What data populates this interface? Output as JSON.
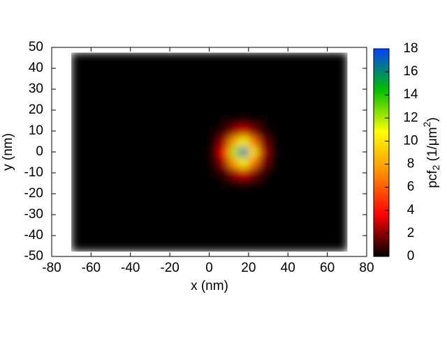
{
  "chart_data": {
    "type": "heatmap",
    "x_label": "x (nm)",
    "y_label": "y (nm)",
    "colorbar_label": [
      "pcf",
      "2",
      " (1/μm",
      "2",
      ")"
    ],
    "x": [
      -67.5,
      -62.5,
      -57.5,
      -52.5,
      -47.5,
      -42.5,
      -37.5,
      -32.5,
      -27.5,
      -22.5,
      -17.5,
      -12.5,
      -7.5,
      -2.5,
      2.5,
      7.5,
      12.5,
      17.5,
      22.5,
      27.5,
      32.5,
      37.5,
      42.5,
      47.5,
      52.5,
      57.5,
      62.5,
      67.5
    ],
    "y": [
      -45,
      -40,
      -35,
      -30,
      -25,
      -20,
      -15,
      -10,
      -5,
      0,
      5,
      10,
      15,
      20,
      25,
      30,
      35,
      40,
      45
    ],
    "z": [
      [
        0,
        0,
        0,
        0,
        0,
        0,
        0,
        0,
        0,
        0,
        0,
        0,
        0,
        0,
        0,
        0,
        0,
        0,
        0,
        0,
        0,
        0,
        0,
        0,
        0,
        0,
        0,
        0
      ],
      [
        0,
        0,
        0,
        0,
        0,
        0,
        0,
        0,
        0,
        0,
        0,
        0,
        0,
        0,
        0,
        0,
        0,
        0,
        0,
        0,
        0,
        0,
        0,
        0,
        0,
        0,
        0,
        0
      ],
      [
        0,
        0,
        0,
        0,
        0,
        0,
        0,
        0,
        0,
        0,
        0,
        0,
        0,
        0,
        0,
        0,
        0,
        0,
        0,
        0,
        0,
        0,
        0,
        0,
        0,
        0,
        0,
        0
      ],
      [
        0,
        0,
        0,
        0,
        0,
        0,
        0,
        0,
        0,
        0,
        0,
        0,
        0,
        0,
        0,
        0,
        0,
        0,
        0,
        0,
        0,
        0,
        0,
        0,
        0,
        0,
        0,
        0
      ],
      [
        0,
        0,
        0,
        0,
        0,
        0,
        0,
        0,
        0,
        0,
        0,
        0,
        0,
        0,
        0,
        0,
        0,
        0,
        0,
        0,
        0,
        0,
        0,
        0,
        0,
        0,
        0,
        0
      ],
      [
        0,
        0,
        0,
        0,
        0,
        0,
        0,
        0,
        0,
        0,
        0,
        0,
        0,
        0,
        0,
        0,
        0,
        0,
        0,
        0,
        0,
        0,
        0,
        0,
        0,
        0,
        0,
        0
      ],
      [
        0,
        0,
        0,
        0,
        0,
        0,
        0,
        0,
        0,
        0,
        0,
        0,
        0,
        0,
        0,
        0.1,
        0.2,
        0.4,
        0.2,
        0.1,
        0,
        0,
        0,
        0,
        0,
        0,
        0,
        0
      ],
      [
        0,
        0,
        0,
        0,
        0,
        0,
        0,
        0,
        0,
        0,
        0,
        0,
        0,
        0,
        0.1,
        0.6,
        2.1,
        3.0,
        1.8,
        0.5,
        0,
        0,
        0,
        0,
        0,
        0,
        0,
        0
      ],
      [
        0,
        0,
        0,
        0,
        0,
        0,
        0,
        0,
        0,
        0,
        0,
        0,
        0,
        0,
        0.3,
        2.3,
        7.8,
        11.0,
        6.6,
        1.7,
        0.2,
        0,
        0,
        0,
        0,
        0,
        0,
        0
      ],
      [
        0,
        0,
        0,
        0,
        0,
        0,
        0,
        0,
        0,
        0,
        0,
        0,
        0,
        0,
        0.5,
        3.6,
        12.0,
        16.9,
        10.1,
        2.5,
        0.3,
        0,
        0,
        0,
        0,
        0,
        0,
        0
      ],
      [
        0,
        0,
        0,
        0,
        0,
        0,
        0,
        0,
        0,
        0,
        0,
        0,
        0,
        0,
        0.3,
        2.3,
        7.8,
        11.0,
        6.6,
        1.7,
        0.2,
        0,
        0,
        0,
        0,
        0,
        0,
        0
      ],
      [
        0,
        0,
        0,
        0,
        0,
        0,
        0,
        0,
        0,
        0,
        0,
        0,
        0,
        0,
        0.1,
        0.6,
        2.1,
        3.0,
        1.8,
        0.5,
        0,
        0,
        0,
        0,
        0,
        0,
        0,
        0
      ],
      [
        0,
        0,
        0,
        0,
        0,
        0,
        0,
        0,
        0,
        0,
        0,
        0,
        0,
        0,
        0,
        0.1,
        0.2,
        0.4,
        0.2,
        0.1,
        0,
        0,
        0,
        0,
        0,
        0,
        0,
        0
      ],
      [
        0,
        0,
        0,
        0,
        0,
        0,
        0,
        0,
        0,
        0,
        0,
        0,
        0,
        0,
        0,
        0,
        0,
        0,
        0,
        0,
        0,
        0,
        0,
        0,
        0,
        0,
        0,
        0
      ],
      [
        0,
        0,
        0,
        0,
        0,
        0,
        0,
        0,
        0,
        0,
        0,
        0,
        0,
        0,
        0,
        0,
        0,
        0,
        0,
        0,
        0,
        0,
        0,
        0,
        0,
        0,
        0,
        0
      ],
      [
        0,
        0,
        0,
        0,
        0,
        0,
        0,
        0,
        0,
        0,
        0,
        0,
        0,
        0,
        0,
        0,
        0,
        0,
        0,
        0,
        0,
        0,
        0,
        0,
        0,
        0,
        0,
        0
      ],
      [
        0,
        0,
        0,
        0,
        0,
        0,
        0,
        0,
        0,
        0,
        0,
        0,
        0,
        0,
        0,
        0,
        0,
        0,
        0,
        0,
        0,
        0,
        0,
        0,
        0,
        0,
        0,
        0
      ],
      [
        0,
        0,
        0,
        0,
        0,
        0,
        0,
        0,
        0,
        0,
        0,
        0,
        0,
        0,
        0,
        0,
        0,
        0,
        0,
        0,
        0,
        0,
        0,
        0,
        0,
        0,
        0,
        0
      ],
      [
        0,
        0,
        0,
        0,
        0,
        0,
        0,
        0,
        0,
        0,
        0,
        0,
        0,
        0,
        0,
        0,
        0,
        0,
        0,
        0,
        0,
        0,
        0,
        0,
        0,
        0,
        0,
        0
      ]
    ],
    "xlim": [
      -80,
      80
    ],
    "xticks": [
      -80,
      -60,
      -40,
      -20,
      0,
      20,
      40,
      60,
      80
    ],
    "ylim": [
      -50,
      50
    ],
    "yticks": [
      -50,
      -40,
      -30,
      -20,
      -10,
      0,
      10,
      20,
      30,
      40,
      50
    ],
    "zlim": [
      0,
      18
    ],
    "zticks": [
      0,
      2,
      4,
      6,
      8,
      10,
      12,
      14,
      16,
      18
    ],
    "palette": [
      "#000000",
      "#ff0000",
      "#ff8c00",
      "#ffff00",
      "#00c000",
      "#0040ff"
    ],
    "grid": false
  }
}
